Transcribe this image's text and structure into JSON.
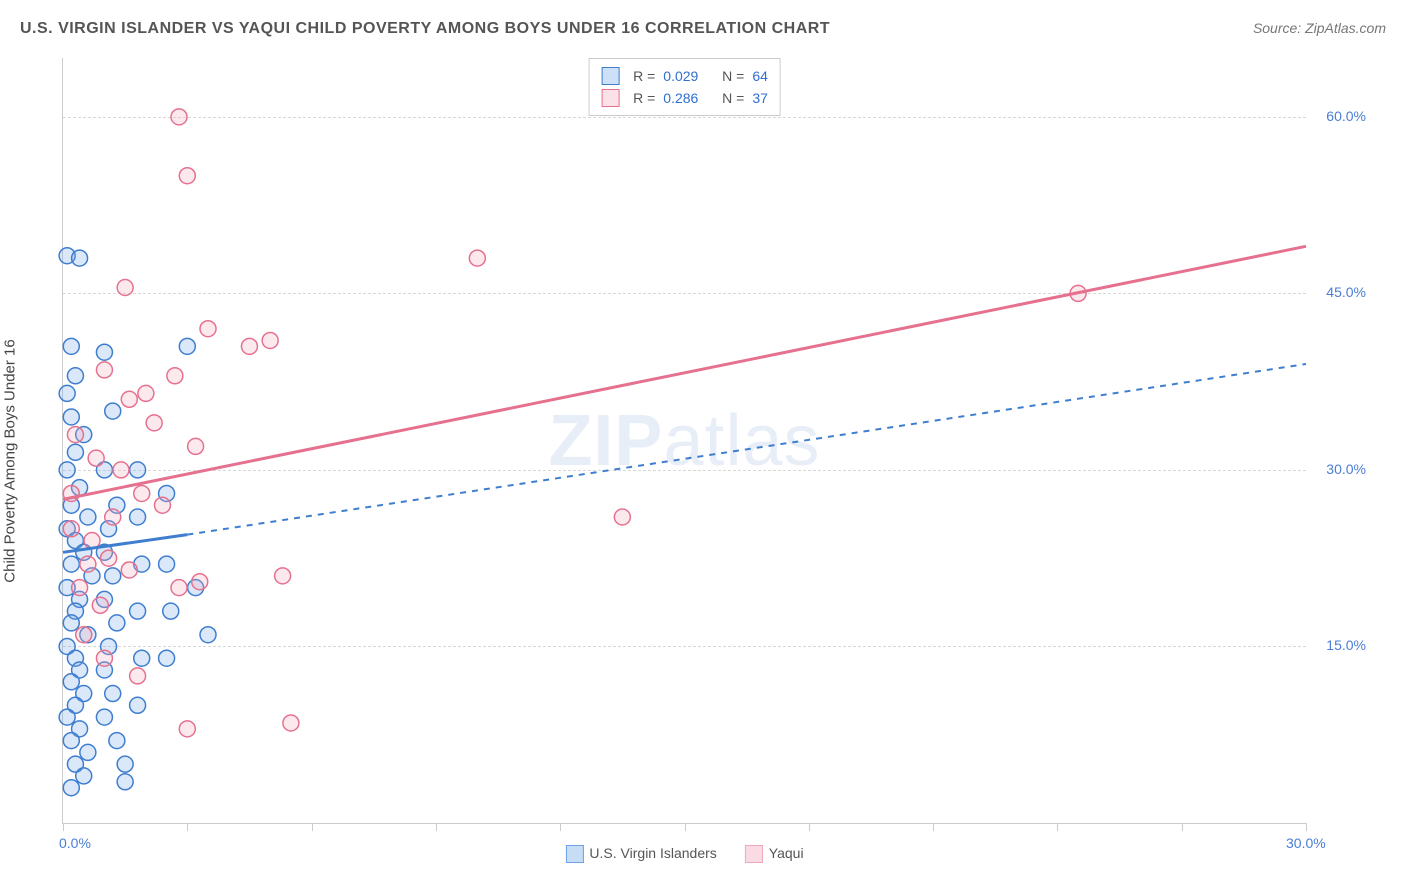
{
  "header": {
    "title": "U.S. VIRGIN ISLANDER VS YAQUI CHILD POVERTY AMONG BOYS UNDER 16 CORRELATION CHART",
    "source": "Source: ZipAtlas.com"
  },
  "chart": {
    "type": "scatter",
    "ylabel": "Child Poverty Among Boys Under 16",
    "background_color": "#ffffff",
    "grid_color": "#d8d8d8",
    "axis_color": "#cccccc",
    "label_color": "#4a7dd6",
    "text_color": "#555555",
    "watermark": {
      "pre": "ZIP",
      "post": "atlas",
      "color": "#e8eef7",
      "fontsize": 72
    },
    "xlim": [
      0,
      30
    ],
    "ylim": [
      0,
      65
    ],
    "xticks": [
      0,
      3,
      6,
      9,
      12,
      15,
      18,
      21,
      24,
      27,
      30
    ],
    "xtick_labels": {
      "0": "0.0%",
      "30": "30.0%"
    },
    "yticks": [
      15,
      30,
      45,
      60
    ],
    "ytick_labels": {
      "15": "15.0%",
      "30": "30.0%",
      "45": "45.0%",
      "60": "60.0%"
    },
    "marker_radius": 8,
    "marker_fill_opacity": 0.25,
    "marker_stroke_width": 1.5,
    "trend_line_width": 3,
    "trend_dash_width": 2,
    "series": [
      {
        "name": "U.S. Virgin Islanders",
        "color": "#6ca3e8",
        "stroke": "#3f7ecf",
        "r": "0.029",
        "n": "64",
        "trend": {
          "x1": 0,
          "y1": 23.0,
          "x2": 3.0,
          "y2": 24.5,
          "dashed_to_x": 30,
          "dashed_to_y": 39.0
        },
        "points": [
          [
            0.1,
            48.2
          ],
          [
            0.4,
            48.0
          ],
          [
            0.2,
            40.5
          ],
          [
            0.3,
            38.0
          ],
          [
            0.1,
            36.5
          ],
          [
            0.2,
            34.5
          ],
          [
            0.5,
            33.0
          ],
          [
            0.3,
            31.5
          ],
          [
            0.1,
            30.0
          ],
          [
            0.4,
            28.5
          ],
          [
            0.2,
            27.0
          ],
          [
            0.6,
            26.0
          ],
          [
            0.1,
            25.0
          ],
          [
            0.3,
            24.0
          ],
          [
            0.5,
            23.0
          ],
          [
            0.2,
            22.0
          ],
          [
            0.7,
            21.0
          ],
          [
            0.1,
            20.0
          ],
          [
            0.4,
            19.0
          ],
          [
            0.3,
            18.0
          ],
          [
            0.2,
            17.0
          ],
          [
            0.6,
            16.0
          ],
          [
            0.1,
            15.0
          ],
          [
            0.3,
            14.0
          ],
          [
            0.4,
            13.0
          ],
          [
            0.2,
            12.0
          ],
          [
            0.5,
            11.0
          ],
          [
            0.3,
            10.0
          ],
          [
            0.1,
            9.0
          ],
          [
            0.4,
            8.0
          ],
          [
            0.2,
            7.0
          ],
          [
            0.6,
            6.0
          ],
          [
            0.3,
            5.0
          ],
          [
            0.5,
            4.0
          ],
          [
            0.2,
            3.0
          ],
          [
            1.0,
            40.0
          ],
          [
            1.2,
            35.0
          ],
          [
            1.0,
            30.0
          ],
          [
            1.3,
            27.0
          ],
          [
            1.1,
            25.0
          ],
          [
            1.0,
            23.0
          ],
          [
            1.2,
            21.0
          ],
          [
            1.0,
            19.0
          ],
          [
            1.3,
            17.0
          ],
          [
            1.1,
            15.0
          ],
          [
            1.0,
            13.0
          ],
          [
            1.2,
            11.0
          ],
          [
            1.0,
            9.0
          ],
          [
            1.3,
            7.0
          ],
          [
            1.8,
            30.0
          ],
          [
            1.8,
            26.0
          ],
          [
            1.9,
            22.0
          ],
          [
            1.8,
            18.0
          ],
          [
            1.9,
            14.0
          ],
          [
            1.8,
            10.0
          ],
          [
            2.5,
            28.0
          ],
          [
            2.5,
            22.0
          ],
          [
            2.6,
            18.0
          ],
          [
            2.5,
            14.0
          ],
          [
            3.0,
            40.5
          ],
          [
            3.2,
            20.0
          ],
          [
            3.5,
            16.0
          ],
          [
            1.5,
            5.0
          ],
          [
            1.5,
            3.5
          ]
        ]
      },
      {
        "name": "Yaqui",
        "color": "#f2a8bb",
        "stroke": "#e6718f",
        "r": "0.286",
        "n": "37",
        "trend": {
          "x1": 0,
          "y1": 27.5,
          "x2": 30,
          "y2": 49.0
        },
        "points": [
          [
            2.8,
            60.0
          ],
          [
            3.0,
            55.0
          ],
          [
            1.5,
            45.5
          ],
          [
            2.7,
            38.0
          ],
          [
            3.5,
            42.0
          ],
          [
            4.5,
            40.5
          ],
          [
            5.0,
            41.0
          ],
          [
            1.0,
            38.5
          ],
          [
            1.6,
            36.0
          ],
          [
            2.0,
            36.5
          ],
          [
            2.2,
            34.0
          ],
          [
            3.2,
            32.0
          ],
          [
            0.3,
            33.0
          ],
          [
            0.8,
            31.0
          ],
          [
            1.4,
            30.0
          ],
          [
            1.9,
            28.0
          ],
          [
            2.4,
            27.0
          ],
          [
            1.2,
            26.0
          ],
          [
            0.2,
            25.0
          ],
          [
            0.7,
            24.0
          ],
          [
            1.1,
            22.5
          ],
          [
            1.6,
            21.5
          ],
          [
            0.4,
            20.0
          ],
          [
            0.9,
            18.5
          ],
          [
            2.8,
            20.0
          ],
          [
            3.3,
            20.5
          ],
          [
            5.3,
            21.0
          ],
          [
            0.5,
            16.0
          ],
          [
            1.0,
            14.0
          ],
          [
            1.8,
            12.5
          ],
          [
            3.0,
            8.0
          ],
          [
            5.5,
            8.5
          ],
          [
            10.0,
            48.0
          ],
          [
            13.5,
            26.0
          ],
          [
            24.5,
            45.0
          ],
          [
            0.2,
            28.0
          ],
          [
            0.6,
            22.0
          ]
        ]
      }
    ],
    "legend_bottom": [
      {
        "label": "U.S. Virgin Islanders",
        "fill": "#c7ddf6",
        "border": "#6ca3e8"
      },
      {
        "label": "Yaqui",
        "fill": "#fbdbe3",
        "border": "#f2a8bb"
      }
    ]
  }
}
